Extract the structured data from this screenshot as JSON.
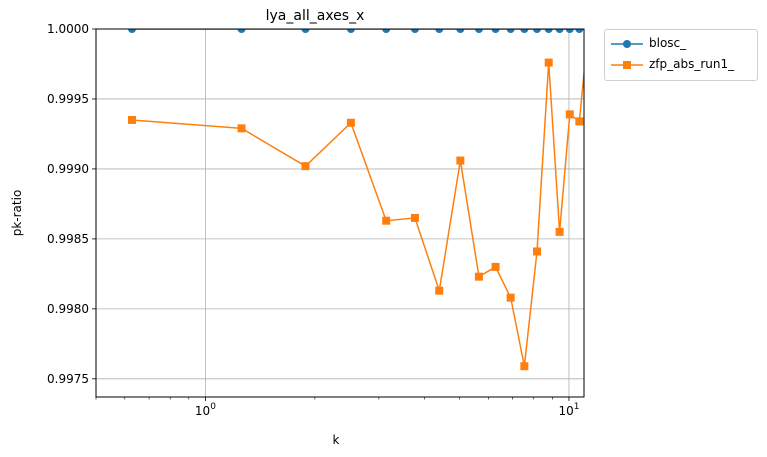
{
  "chart_data": {
    "type": "line",
    "title": "lya_all_axes_x",
    "xlabel": "k",
    "ylabel": "pk-ratio",
    "xscale": "log",
    "xlim": [
      0.5,
      11.0
    ],
    "ylim": [
      0.99737,
      1.0
    ],
    "grid": true,
    "legend_position": "outside-top-right",
    "xtick_labels": [
      "10^0",
      "10^1"
    ],
    "ytick_labels": [
      "0.9975",
      "0.9980",
      "0.9985",
      "0.9990",
      "0.9995",
      "1.0000"
    ],
    "x": [
      0.628,
      1.257,
      1.885,
      2.513,
      3.142,
      3.77,
      4.398,
      5.027,
      5.655,
      6.283,
      6.912,
      7.54,
      8.168,
      8.796,
      9.425,
      10.053,
      10.681,
      11.31
    ],
    "series": [
      {
        "name": "blosc_",
        "color": "#1f77b4",
        "marker": "circle",
        "values": [
          1.0,
          1.0,
          1.0,
          1.0,
          1.0,
          1.0,
          1.0,
          1.0,
          1.0,
          1.0,
          1.0,
          1.0,
          1.0,
          1.0,
          1.0,
          1.0,
          1.0,
          1.0
        ]
      },
      {
        "name": "zfp_abs_run1_",
        "color": "#ff7f0e",
        "marker": "square",
        "values": [
          0.99935,
          0.99929,
          0.99902,
          0.99933,
          0.99863,
          0.99865,
          0.99813,
          0.99906,
          0.99823,
          0.9983,
          0.99808,
          0.99759,
          0.99841,
          0.99976,
          0.99855,
          0.99939,
          0.99934,
          1.0
        ]
      }
    ]
  }
}
